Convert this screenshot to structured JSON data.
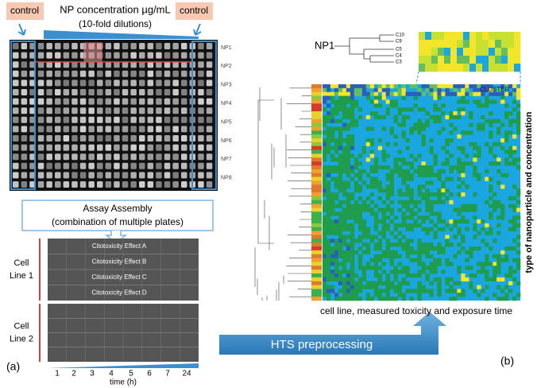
{
  "panel_a": {
    "control_left": "control",
    "control_right": "control",
    "concentration_title": "NP concentration µg/mL",
    "dilution_note": "(10-fold dilutions)",
    "row_labels": [
      "NP1",
      "NP2",
      "NP3",
      "NP4",
      "NP5",
      "NP6",
      "NP7",
      "NP8"
    ],
    "assay_title": "Assay Assembly",
    "assay_note": "(combination of multiple plates)",
    "effects": [
      "Citotoxicity Effect A",
      "Citotoxicity Effect B",
      "Citotoxicity Effect C",
      "Citotoxicity Effect D"
    ],
    "cell_lines": [
      [
        "Cell",
        "Line 1"
      ],
      [
        "Cell",
        "Line 2"
      ]
    ],
    "time_ticks": [
      1,
      2,
      3,
      4,
      5,
      6,
      7,
      24
    ],
    "time_label": "time (h)",
    "panel_label": "(a)"
  },
  "arrow_label": "HTS preprocessing",
  "panel_b": {
    "zoom_label": "NP1",
    "zoom_leaves": [
      "C10",
      "C9",
      "C5",
      "C4",
      "C3"
    ],
    "cluster_label": "CLUSTER",
    "x_label": "cell line, measured toxicity and exposure time",
    "y_label": "type of nanoparticle and concentration",
    "panel_label": "(b)"
  }
}
